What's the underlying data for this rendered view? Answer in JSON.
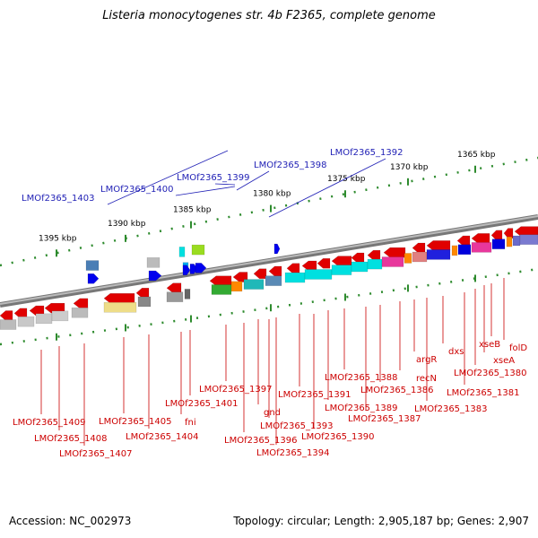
{
  "title": "Listeria monocytogenes str. 4b F2365, complete genome",
  "footer": {
    "accession": "Accession: NC_002973",
    "summary": "Topology: circular; Length: 2,905,187 bp; Genes: 2,907"
  },
  "colors": {
    "top_label": "#1f1fb5",
    "bottom_label": "#cc0000",
    "ruler": "#2e8b2e",
    "backbone": "#888888"
  },
  "ticks": [
    "1395 kbp",
    "1390 kbp",
    "1385 kbp",
    "1380 kbp",
    "1375 kbp",
    "1370 kbp",
    "1365 kbp"
  ],
  "top_labels": [
    "LMOf2365_1403",
    "LMOf2365_1400",
    "LMOf2365_1399",
    "LMOf2365_1398",
    "LMOf2365_1392"
  ],
  "bottom_labels": [
    "LMOf2365_1409",
    "LMOf2365_1408",
    "LMOf2365_1407",
    "LMOf2365_1405",
    "LMOf2365_1404",
    "fni",
    "LMOf2365_1401",
    "LMOf2365_1397",
    "LMOf2365_1396",
    "gnd",
    "LMOf2365_1394",
    "LMOf2365_1393",
    "LMOf2365_1391",
    "LMOf2365_1390",
    "LMOf2365_1389",
    "LMOf2365_1388",
    "LMOf2365_1387",
    "LMOf2365_1386",
    "recN",
    "argR",
    "LMOf2365_1383",
    "dxs",
    "LMOf2365_1381",
    "LMOf2365_1380",
    "xseA",
    "xseB",
    "folD"
  ]
}
